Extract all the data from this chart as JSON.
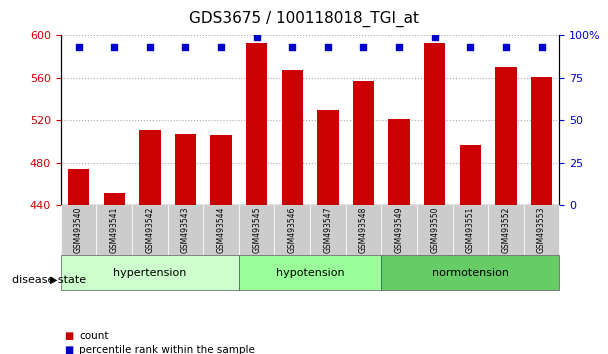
{
  "title": "GDS3675 / 100118018_TGI_at",
  "samples": [
    "GSM493540",
    "GSM493541",
    "GSM493542",
    "GSM493543",
    "GSM493544",
    "GSM493545",
    "GSM493546",
    "GSM493547",
    "GSM493548",
    "GSM493549",
    "GSM493550",
    "GSM493551",
    "GSM493552",
    "GSM493553"
  ],
  "counts": [
    474,
    452,
    511,
    507,
    506,
    593,
    567,
    530,
    557,
    521,
    593,
    497,
    570,
    561
  ],
  "percentiles": [
    93,
    93,
    93,
    93,
    93,
    99,
    93,
    93,
    93,
    93,
    99,
    93,
    93,
    93
  ],
  "groups": [
    {
      "label": "hypertension",
      "start": 0,
      "end": 5,
      "color": "#ccffcc"
    },
    {
      "label": "hypotension",
      "start": 5,
      "end": 9,
      "color": "#99ff99"
    },
    {
      "label": "normotension",
      "start": 9,
      "end": 14,
      "color": "#66cc66"
    }
  ],
  "ylim_left": [
    440,
    600
  ],
  "ylim_right": [
    0,
    100
  ],
  "yticks_left": [
    440,
    480,
    520,
    560,
    600
  ],
  "yticks_right": [
    0,
    25,
    50,
    75,
    100
  ],
  "bar_color": "#cc0000",
  "dot_color": "#0000cc",
  "tick_label_color": "#cc0000",
  "right_tick_color": "#0000cc",
  "grid_color": "#aaaaaa",
  "xlabel_area_color": "#cccccc",
  "disease_label": "disease state",
  "legend_count": "count",
  "legend_percentile": "percentile rank within the sample"
}
